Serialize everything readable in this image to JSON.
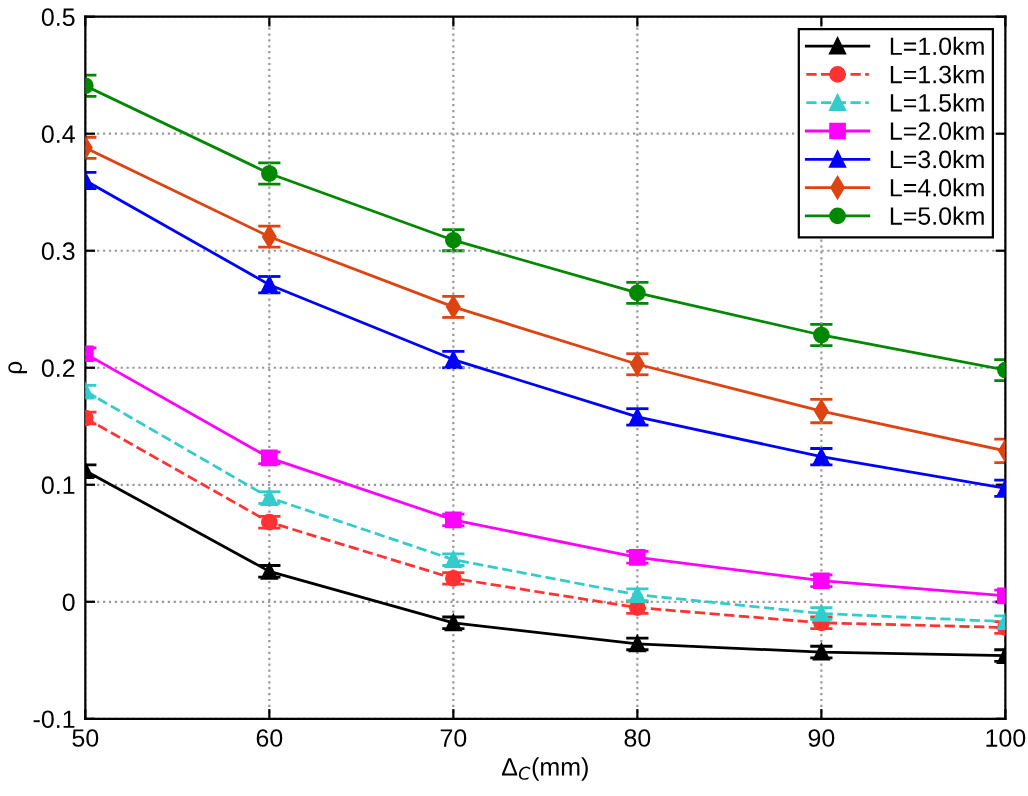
{
  "chart_data": {
    "type": "line",
    "xlabel": "Δ$_{C}$(mm)",
    "ylabel": "ρ",
    "x": [
      50,
      60,
      70,
      80,
      90,
      100
    ],
    "xlim": [
      50,
      100
    ],
    "xticks": [
      50,
      60,
      70,
      80,
      90,
      100
    ],
    "ylim": [
      -0.1,
      0.5
    ],
    "yticks": [
      -0.1,
      0,
      0.1,
      0.2,
      0.3,
      0.4,
      0.5
    ],
    "grid": true,
    "legend": "top right",
    "series": [
      {
        "name": "L=1.0km",
        "color": "#000000",
        "marker": "triangle",
        "line_style": "solid",
        "values": [
          0.112,
          0.026,
          -0.018,
          -0.036,
          -0.043,
          -0.046
        ],
        "errors": [
          0.005,
          0.005,
          0.005,
          0.005,
          0.005,
          0.005
        ]
      },
      {
        "name": "L=1.3km",
        "color": "#ff3333",
        "marker": "circle",
        "line_style": "dashed",
        "values": [
          0.157,
          0.068,
          0.02,
          -0.005,
          -0.018,
          -0.022
        ],
        "errors": [
          0.005,
          0.005,
          0.005,
          0.005,
          0.005,
          0.005
        ]
      },
      {
        "name": "L=1.5km",
        "color": "#33cccc",
        "marker": "triangle",
        "line_style": "dashed",
        "values": [
          0.18,
          0.089,
          0.036,
          0.006,
          -0.01,
          -0.017
        ],
        "errors": [
          0.005,
          0.005,
          0.005,
          0.005,
          0.005,
          0.005
        ]
      },
      {
        "name": "L=2.0km",
        "color": "#ff00ff",
        "marker": "square",
        "line_style": "solid",
        "values": [
          0.212,
          0.123,
          0.07,
          0.038,
          0.018,
          0.005
        ],
        "errors": [
          0.005,
          0.005,
          0.005,
          0.005,
          0.005,
          0.005
        ]
      },
      {
        "name": "L=3.0km",
        "color": "#0000ff",
        "marker": "triangle",
        "line_style": "solid",
        "values": [
          0.36,
          0.271,
          0.207,
          0.158,
          0.124,
          0.097
        ],
        "errors": [
          0.007,
          0.007,
          0.007,
          0.007,
          0.007,
          0.007
        ]
      },
      {
        "name": "L=4.0km",
        "color": "#dd4411",
        "marker": "diamond",
        "line_style": "solid",
        "values": [
          0.388,
          0.312,
          0.252,
          0.203,
          0.163,
          0.129
        ],
        "errors": [
          0.009,
          0.009,
          0.009,
          0.009,
          0.01,
          0.01
        ]
      },
      {
        "name": "L=5.0km",
        "color": "#008800",
        "marker": "circle",
        "line_style": "solid",
        "values": [
          0.441,
          0.366,
          0.309,
          0.264,
          0.228,
          0.198
        ],
        "errors": [
          0.009,
          0.009,
          0.009,
          0.009,
          0.009,
          0.009
        ]
      }
    ]
  }
}
